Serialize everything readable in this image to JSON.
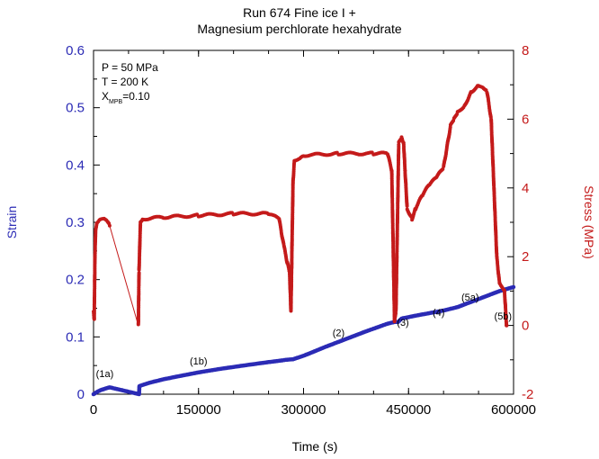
{
  "chart_data": {
    "type": "scatter",
    "title": [
      "Run 674 Fine ice I +",
      "Magnesium perchlorate hexahydrate"
    ],
    "xlabel": "Time (s)",
    "ylabel_left": "Strain",
    "ylabel_right": "Stress (MPa)",
    "xlim": [
      0,
      600000
    ],
    "ylim_left": [
      0,
      0.6
    ],
    "ylim_right": [
      -2,
      8
    ],
    "xticks": [
      "0",
      "150000",
      "300000",
      "450000",
      "600000"
    ],
    "xtick_values": [
      0,
      150000,
      300000,
      450000,
      600000
    ],
    "yticks_left": [
      "0",
      "0.1",
      "0.2",
      "0.3",
      "0.4",
      "0.5",
      "0.6"
    ],
    "ytick_left_values": [
      0,
      0.1,
      0.2,
      0.3,
      0.4,
      0.5,
      0.6
    ],
    "yticks_right": [
      "-2",
      "0",
      "2",
      "4",
      "6",
      "8"
    ],
    "ytick_right_values": [
      -2,
      0,
      2,
      4,
      6,
      8
    ],
    "conditions": {
      "pressure": "P = 50 MPa",
      "temperature": "T = 200 K",
      "x_prefix": "X",
      "x_subscript": "MPB",
      "x_value": "=0.10"
    },
    "phases": [
      {
        "label": "(1a)",
        "x": 16000,
        "y": 0.03
      },
      {
        "label": "(1b)",
        "x": 150000,
        "y": 0.052
      },
      {
        "label": "(2)",
        "x": 350000,
        "y": 0.101
      },
      {
        "label": "(3)",
        "x": 442000,
        "y": 0.119
      },
      {
        "label": "(4)",
        "x": 493000,
        "y": 0.137
      },
      {
        "label": "(5a)",
        "x": 538000,
        "y": 0.163
      },
      {
        "label": "(5b)",
        "x": 585000,
        "y": 0.13
      }
    ],
    "series": [
      {
        "name": "Strain",
        "axis": "left",
        "color": "#2b2bb5",
        "x": [
          0,
          5000,
          10000,
          15000,
          20000,
          23000,
          65000,
          65500,
          70000,
          80000,
          100000,
          120000,
          150000,
          180000,
          220000,
          250000,
          270000,
          275000,
          285000,
          300000,
          330000,
          360000,
          390000,
          420000,
          430000,
          435000,
          440000,
          460000,
          500000,
          520000,
          550000,
          580000,
          600000
        ],
        "y": [
          0,
          0.004,
          0.007,
          0.009,
          0.011,
          0.012,
          0.0,
          0.014,
          0.016,
          0.02,
          0.026,
          0.031,
          0.038,
          0.044,
          0.051,
          0.056,
          0.059,
          0.06,
          0.061,
          0.067,
          0.082,
          0.096,
          0.11,
          0.123,
          0.126,
          0.126,
          0.132,
          0.137,
          0.146,
          0.152,
          0.166,
          0.18,
          0.187
        ]
      },
      {
        "name": "Stress",
        "axis": "right",
        "color": "#c41a1a",
        "x": [
          0,
          1000,
          2000,
          3000,
          5000,
          10000,
          15000,
          20000,
          23000,
          64000,
          65000,
          67000,
          70000,
          100000,
          150000,
          200000,
          250000,
          265000,
          272000,
          277000,
          280000,
          282000,
          285000,
          287000,
          300000,
          350000,
          400000,
          420000,
          426000,
          430000,
          432000,
          436000,
          440000,
          443000,
          445000,
          448000,
          455000,
          460000,
          470000,
          480000,
          490000,
          500000,
          510000,
          515000,
          520000,
          530000,
          540000,
          550000,
          556000,
          562000,
          568000,
          572000,
          576000,
          580000,
          583000,
          587000,
          590000
        ],
        "y": [
          0.4,
          0.2,
          2.0,
          2.8,
          3.0,
          3.1,
          3.1,
          3.0,
          2.9,
          0.0,
          1.6,
          3.0,
          3.1,
          3.15,
          3.2,
          3.25,
          3.25,
          3.1,
          2.3,
          1.8,
          1.55,
          0.4,
          4.2,
          4.8,
          4.95,
          5.0,
          5.0,
          5.0,
          4.5,
          0.1,
          0.4,
          5.3,
          5.45,
          5.3,
          4.5,
          3.4,
          3.1,
          3.4,
          3.8,
          4.1,
          4.3,
          4.6,
          5.8,
          6.0,
          6.2,
          6.4,
          6.8,
          7.0,
          6.95,
          6.8,
          6.0,
          4.0,
          2.0,
          1.2,
          1.1,
          1.0,
          0.0
        ]
      }
    ]
  }
}
